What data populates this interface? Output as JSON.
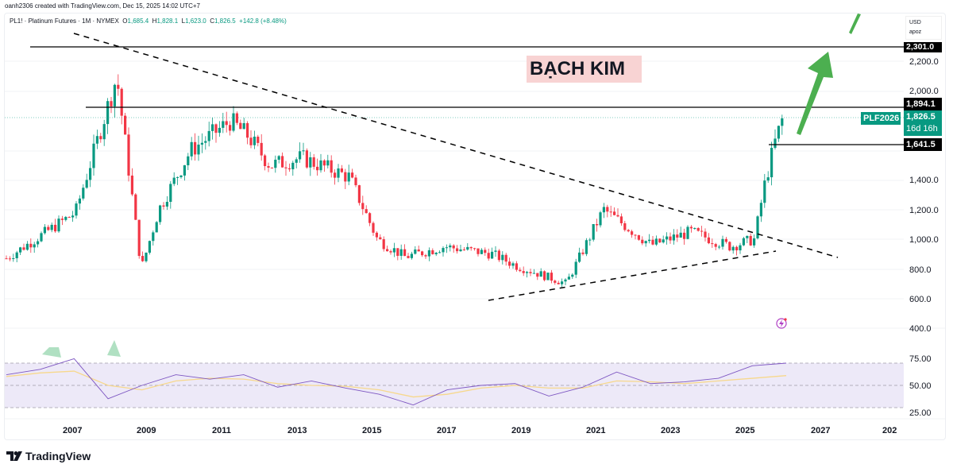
{
  "header": {
    "credit": "oanh2306 created with TradingView.com, Dec 15, 2025 14:02 UTC+7",
    "symbol": "PL1! · Platinum Futures · 1M · NYMEX",
    "o_label": "O",
    "o_value": "1,685.4",
    "h_label": "H",
    "h_value": "1,828.1",
    "l_label": "L",
    "l_value": "1,623.0",
    "c_label": "C",
    "c_value": "1,826.5",
    "change": "+142.8 (+8.48%)"
  },
  "currency": {
    "line1": "USD",
    "line2": "apoz"
  },
  "annotation": {
    "title": "BẠCH KIM",
    "bg": "#f8d3d3"
  },
  "price_tags": {
    "level1": "2,301.0",
    "level2": "1,894.1",
    "current_symbol": "PLF2026",
    "current_price": "1,826.5",
    "countdown": "16d 16h",
    "level3": "1,641.5"
  },
  "colors": {
    "up": "#089981",
    "down": "#f23645",
    "rsi": "#7e57c2",
    "rsi_ma": "#f7d88c",
    "arrow": "#4caf50"
  },
  "footer": {
    "brand": "TradingView"
  },
  "chart_data": [
    {
      "type": "candlestick",
      "title": "PL1! · Platinum Futures · 1M · NYMEX",
      "xlabel": "",
      "ylabel": "USD",
      "ylim": [
        400,
        2400
      ],
      "yticks": [
        "2,200.0",
        "2,000.0",
        "1,400.0",
        "1,200.0",
        "1,000.0",
        "800.0",
        "600.0",
        "400.0"
      ],
      "xticks": [
        "2007",
        "2009",
        "2011",
        "2013",
        "2015",
        "2017",
        "2019",
        "2021",
        "2023",
        "2025",
        "2027",
        "202"
      ],
      "horizontal_lines": [
        2301.0,
        1894.1,
        1641.5
      ],
      "trendlines": [
        {
          "name": "descending resistance",
          "from": [
            "2006.0",
            2440
          ],
          "to": [
            "2026.5",
            890
          ]
        },
        {
          "name": "ascending support",
          "from": [
            "2018.3",
            580
          ],
          "to": [
            "2025.8",
            920
          ]
        }
      ],
      "x": [
        "2006",
        "2007",
        "2008-03",
        "2008-12",
        "2009",
        "2010",
        "2011",
        "2011-08",
        "2012",
        "2013",
        "2014",
        "2015",
        "2016",
        "2017",
        "2018",
        "2019",
        "2020-03",
        "2021-02",
        "2022",
        "2023",
        "2024",
        "2025",
        "2025-06",
        "2025-10",
        "2025-12"
      ],
      "close": [
        870,
        1180,
        2100,
        800,
        1200,
        1600,
        1800,
        1700,
        1500,
        1550,
        1420,
        1000,
        880,
        950,
        900,
        820,
        700,
        1200,
        960,
        1050,
        950,
        1000,
        1350,
        1640,
        1826.5
      ],
      "annotations": [
        "BẠCH KIM",
        "green arrow pointing up"
      ]
    },
    {
      "type": "line",
      "title": "RSI",
      "ylim": [
        20,
        85
      ],
      "yticks": [
        "75.00",
        "50.00",
        "25.00"
      ],
      "bands": [
        30,
        50,
        70
      ],
      "series": [
        {
          "name": "RSI",
          "values": [
            62,
            68,
            80,
            35,
            50,
            62,
            57,
            62,
            48,
            55,
            47,
            40,
            28,
            45,
            50,
            52,
            38,
            48,
            65,
            52,
            54,
            58,
            72,
            75
          ]
        },
        {
          "name": "RSI MA",
          "values": [
            60,
            64,
            66,
            50,
            45,
            55,
            58,
            57,
            52,
            50,
            49,
            45,
            37,
            40,
            47,
            50,
            47,
            47,
            55,
            54,
            52,
            55,
            58,
            61
          ]
        }
      ]
    }
  ]
}
